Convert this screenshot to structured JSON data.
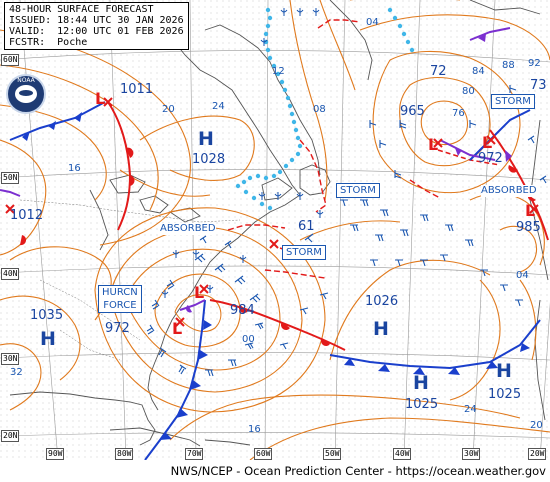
{
  "header": {
    "title": "48-HOUR SURFACE FORECAST",
    "issued": "ISSUED: 18:44 UTC 30 JAN 2026",
    "valid": "VALID:  12:00 UTC 01 FEB 2026",
    "forecaster": "FCSTR:  Poche"
  },
  "footer": "NWS/NCEP - Ocean Prediction Center - https://ocean.weather.gov",
  "logo_text": "NOAA",
  "latitudes": [
    "60N",
    "50N",
    "40N",
    "30N",
    "20N"
  ],
  "longitudes": [
    "90W",
    "80W",
    "70W",
    "60W",
    "50W",
    "40W",
    "30W",
    "20W"
  ],
  "pressure_centers": [
    {
      "id": "h-1028",
      "letter": "H",
      "value": "1028"
    },
    {
      "id": "h-1035",
      "letter": "H",
      "value": "1035"
    },
    {
      "id": "h-1026",
      "letter": "H",
      "value": "1026"
    },
    {
      "id": "h-1025a",
      "letter": "H",
      "value": "1025"
    },
    {
      "id": "h-1025b",
      "letter": "H",
      "value": "1025"
    },
    {
      "id": "l-1011",
      "letter": "L",
      "value": "1011"
    },
    {
      "id": "l-1012",
      "letter": "L",
      "value": "1012"
    },
    {
      "id": "l-972w",
      "letter": "L",
      "value": "972"
    },
    {
      "id": "l-984",
      "letter": "L",
      "value": "984"
    },
    {
      "id": "l-965",
      "letter": "L",
      "value": "965"
    },
    {
      "id": "l-972e",
      "letter": "L",
      "value": "972"
    },
    {
      "id": "l-985",
      "letter": "L",
      "value": "985"
    }
  ],
  "isobar_labels": [
    "20",
    "24",
    "16",
    "32",
    "12",
    "08",
    "04",
    "72",
    "76",
    "80",
    "84",
    "88",
    "92",
    "73",
    "61",
    "00",
    "16",
    "24",
    "20",
    "04"
  ],
  "warnings": {
    "storm_n": "STORM",
    "storm_c": "STORM",
    "storm_e": "STORM",
    "hurricane_force": [
      "HURCN",
      "FORCE"
    ],
    "absorbed_w": "ABSORBED",
    "absorbed_e": "ABSORBED"
  },
  "colors": {
    "isobar": "#e07a1e",
    "cold_front": "#1a3fcc",
    "warm_front": "#e21a1a",
    "occluded": "#7b2fd0",
    "land_border": "#555555",
    "ice": "#3fb6e8",
    "wind_barb": "#1a56b0",
    "low_symbol": "#e21a1a",
    "label": "#1a45a0"
  }
}
